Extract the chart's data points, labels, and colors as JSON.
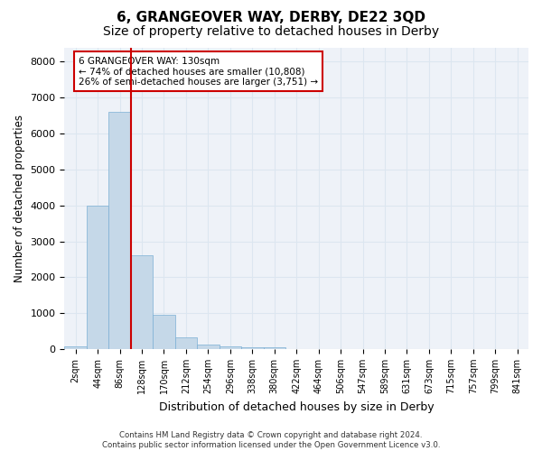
{
  "title": "6, GRANGEOVER WAY, DERBY, DE22 3QD",
  "subtitle": "Size of property relative to detached houses in Derby",
  "xlabel": "Distribution of detached houses by size in Derby",
  "ylabel": "Number of detached properties",
  "bin_labels": [
    "2sqm",
    "44sqm",
    "86sqm",
    "128sqm",
    "170sqm",
    "212sqm",
    "254sqm",
    "296sqm",
    "338sqm",
    "380sqm",
    "422sqm",
    "464sqm",
    "506sqm",
    "547sqm",
    "589sqm",
    "631sqm",
    "673sqm",
    "715sqm",
    "757sqm",
    "799sqm",
    "841sqm"
  ],
  "bar_heights": [
    75,
    4000,
    6600,
    2600,
    950,
    325,
    130,
    80,
    60,
    50,
    0,
    0,
    0,
    0,
    0,
    0,
    0,
    0,
    0,
    0,
    0
  ],
  "bar_color": "#c5d8e8",
  "bar_edge_color": "#7bafd4",
  "grid_color": "#dce6f0",
  "vline_x": 2.5,
  "annotation_line1": "6 GRANGEOVER WAY: 130sqm",
  "annotation_line2": "← 74% of detached houses are smaller (10,808)",
  "annotation_line3": "26% of semi-detached houses are larger (3,751) →",
  "annotation_box_color": "#ffffff",
  "annotation_box_edge": "#cc0000",
  "vline_color": "#cc0000",
  "ylim": [
    0,
    8400
  ],
  "yticks": [
    0,
    1000,
    2000,
    3000,
    4000,
    5000,
    6000,
    7000,
    8000
  ],
  "footnote_line1": "Contains HM Land Registry data © Crown copyright and database right 2024.",
  "footnote_line2": "Contains public sector information licensed under the Open Government Licence v3.0.",
  "background_color": "#eef2f8",
  "title_fontsize": 11,
  "subtitle_fontsize": 10
}
